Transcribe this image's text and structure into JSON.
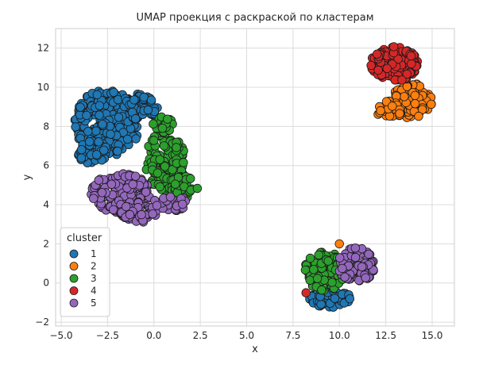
{
  "chart_data": {
    "type": "scatter",
    "title": "UMAP проекция с раскраской по кластерам",
    "xlabel": "x",
    "ylabel": "y",
    "xlim": [
      -5.3,
      16.2
    ],
    "ylim": [
      -2.2,
      13.0
    ],
    "xticks": [
      -5.0,
      -2.5,
      0.0,
      2.5,
      5.0,
      7.5,
      10.0,
      12.5,
      15.0
    ],
    "xtick_labels": [
      "−5.0",
      "−2.5",
      "0.0",
      "2.5",
      "5.0",
      "7.5",
      "10.0",
      "12.5",
      "15.0"
    ],
    "yticks": [
      -2,
      0,
      2,
      4,
      6,
      8,
      10,
      12
    ],
    "ytick_labels": [
      "−2",
      "0",
      "2",
      "4",
      "6",
      "8",
      "10",
      "12"
    ],
    "grid": true,
    "legend": {
      "title": "cluster",
      "placement": "lower-left"
    },
    "series": [
      {
        "name": "1",
        "color": "#1f77b4",
        "count": 380,
        "regions": [
          {
            "cx": -2.5,
            "cy": 8.2,
            "rx": 1.8,
            "ry": 1.7
          },
          {
            "cx": -0.7,
            "cy": 9.0,
            "rx": 0.9,
            "ry": 0.7
          },
          {
            "cx": -3.3,
            "cy": 6.7,
            "rx": 0.8,
            "ry": 0.7
          }
        ],
        "sub": [
          {
            "count": 70,
            "cx": 9.5,
            "cy": -0.8,
            "rx": 1.2,
            "ry": 0.45
          }
        ]
      },
      {
        "name": "2",
        "color": "#ff7f0e",
        "count": 140,
        "regions": [
          {
            "cx": 13.9,
            "cy": 9.3,
            "rx": 1.1,
            "ry": 0.9
          },
          {
            "cx": 12.7,
            "cy": 8.8,
            "rx": 0.7,
            "ry": 0.5
          }
        ],
        "extra_points": [
          [
            10.0,
            2.0
          ]
        ]
      },
      {
        "name": "3",
        "color": "#2ca02c",
        "count": 200,
        "regions": [
          {
            "cx": 0.6,
            "cy": 6.2,
            "rx": 1.1,
            "ry": 1.6
          },
          {
            "cx": 1.6,
            "cy": 4.9,
            "rx": 0.8,
            "ry": 0.6
          },
          {
            "cx": 0.5,
            "cy": 8.0,
            "rx": 0.6,
            "ry": 0.5
          }
        ],
        "sub": [
          {
            "count": 110,
            "cx": 9.2,
            "cy": 0.6,
            "rx": 1.1,
            "ry": 1.0
          }
        ]
      },
      {
        "name": "4",
        "color": "#d62728",
        "count": 150,
        "regions": [
          {
            "cx": 13.0,
            "cy": 11.2,
            "rx": 1.3,
            "ry": 0.9
          }
        ],
        "extra_points": [
          [
            8.2,
            -0.5
          ]
        ]
      },
      {
        "name": "5",
        "color": "#9467bd",
        "count": 230,
        "regions": [
          {
            "cx": -1.8,
            "cy": 4.6,
            "rx": 1.6,
            "ry": 1.0
          },
          {
            "cx": -0.8,
            "cy": 3.6,
            "rx": 1.0,
            "ry": 0.55
          },
          {
            "cx": 0.9,
            "cy": 4.1,
            "rx": 0.9,
            "ry": 0.45
          }
        ],
        "sub": [
          {
            "count": 100,
            "cx": 10.9,
            "cy": 0.9,
            "rx": 1.0,
            "ry": 0.9
          }
        ]
      }
    ]
  }
}
